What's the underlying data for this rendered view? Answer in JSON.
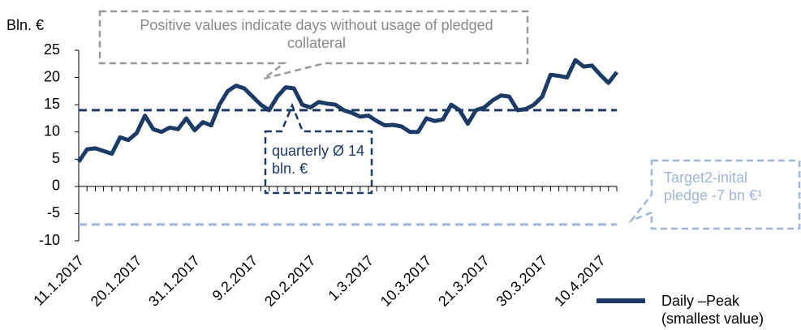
{
  "chart_data": {
    "type": "line",
    "y_axis_label": "Bln. €",
    "categories": [
      "11.1.2017",
      null,
      null,
      null,
      null,
      null,
      null,
      "20.1.2017",
      null,
      null,
      null,
      null,
      null,
      null,
      "31.1.2017",
      null,
      null,
      null,
      null,
      null,
      null,
      "9.2.2017",
      null,
      null,
      null,
      null,
      null,
      null,
      "20.2.2017",
      null,
      null,
      null,
      null,
      null,
      null,
      "1.3.2017",
      null,
      null,
      null,
      null,
      null,
      null,
      "10.3.2017",
      null,
      null,
      null,
      null,
      null,
      null,
      "21.3.2017",
      null,
      null,
      null,
      null,
      null,
      null,
      "30.3.2017",
      null,
      null,
      null,
      null,
      null,
      null,
      "10.4.2017",
      null,
      null
    ],
    "series": [
      {
        "name": "Daily –Peak (smallest value)",
        "color": "#1b3a66",
        "values": [
          4.5,
          6.8,
          7,
          6.5,
          6,
          9,
          8.5,
          9.8,
          13,
          10.5,
          10,
          10.8,
          10.5,
          12.5,
          10.3,
          11.8,
          11.2,
          15,
          17.5,
          18.5,
          18,
          16.5,
          15,
          14,
          16.5,
          18.2,
          18,
          15,
          14.5,
          15.5,
          15.2,
          15,
          14,
          13.5,
          12.8,
          13,
          12,
          11.2,
          11.3,
          11,
          10,
          10,
          12.5,
          12,
          12.3,
          15,
          14,
          11.5,
          14,
          14.5,
          15.8,
          16.7,
          16.5,
          14,
          14.2,
          15,
          16.5,
          20.5,
          20.3,
          20,
          23.2,
          22,
          22.2,
          20.5,
          19,
          21
        ]
      }
    ],
    "reference_lines": [
      {
        "value": 14,
        "color": "#1b3a66"
      },
      {
        "value": -7,
        "color": "#9db6da"
      }
    ],
    "annotations": [
      "Positive values indicate days without usage of pledged collateral",
      "quarterly Ø 14 bln. €",
      "Target2-inital pledge -7 bn €¹"
    ],
    "ylim": [
      -10,
      25
    ],
    "yticks": [
      -10,
      -5,
      0,
      5,
      10,
      15,
      20,
      25
    ]
  }
}
